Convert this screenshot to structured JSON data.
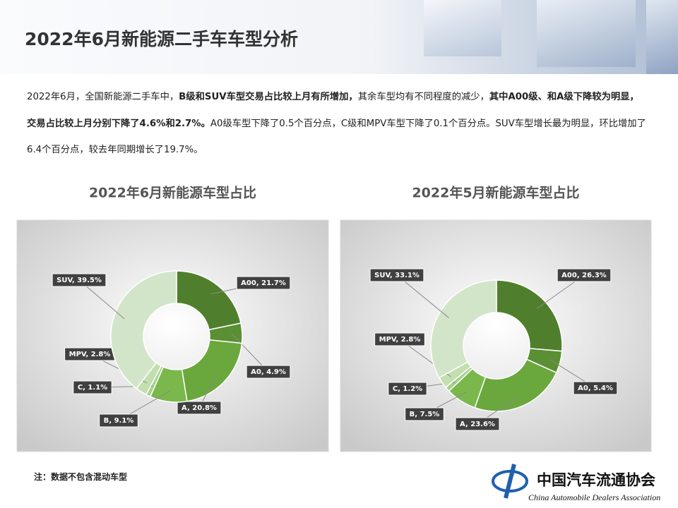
{
  "header": {
    "title": "2022年6月新能源二手车车型分析"
  },
  "paragraph": [
    {
      "text": "2022年6月，全国新能源二手车中，",
      "bold": false
    },
    {
      "text": "B级和SUV车型交易占比较上月有所增加，",
      "bold": true
    },
    {
      "text": "其余车型均有不同程度的减少，",
      "bold": false
    },
    {
      "text": "其中A00级、和A级下降较为明显，交易占比较上月分别下降了4.6%和2.7%。",
      "bold": true
    },
    {
      "text": "A0级车型下降了0.5个百分点，C级和MPV车型下降了0.1个百分点。SUV车型增长最为明显，环比增加了6.4个百分点，较去年同期增长了19.7%。",
      "bold": false
    }
  ],
  "chart_data": [
    {
      "type": "donut",
      "title": "2022年6月新能源车型占比",
      "values": [
        21.7,
        4.9,
        20.8,
        9.1,
        1.1,
        2.8,
        39.5
      ],
      "value_labels": [
        "A00, 21.7%",
        "A0, 4.9%",
        "A, 20.8%",
        "B, 9.1%",
        "C, 1.1%",
        "MPV, 2.8%",
        "SUV, 39.5%"
      ],
      "colors": [
        "#4f7f2c",
        "#5a8f33",
        "#6aa83d",
        "#7ab84c",
        "#a8cf8d",
        "#c3dfb0",
        "#d3e5c8"
      ]
    },
    {
      "type": "donut",
      "title": "2022年5月新能源车型占比",
      "values": [
        26.3,
        5.4,
        23.6,
        7.5,
        1.2,
        2.8,
        33.1
      ],
      "value_labels": [
        "A00, 26.3%",
        "A0, 5.4%",
        "A, 23.6%",
        "B, 7.5%",
        "C, 1.2%",
        "MPV, 2.8%",
        "SUV, 33.1%"
      ],
      "colors": [
        "#4f7f2c",
        "#5a8f33",
        "#6aa83d",
        "#7ab84c",
        "#a8cf8d",
        "#c3dfb0",
        "#d3e5c8"
      ]
    }
  ],
  "note": "注：数据不包含混动车型",
  "logo": {
    "name": "中国汽车流通协会",
    "english": "China Automobile Dealers Association"
  }
}
